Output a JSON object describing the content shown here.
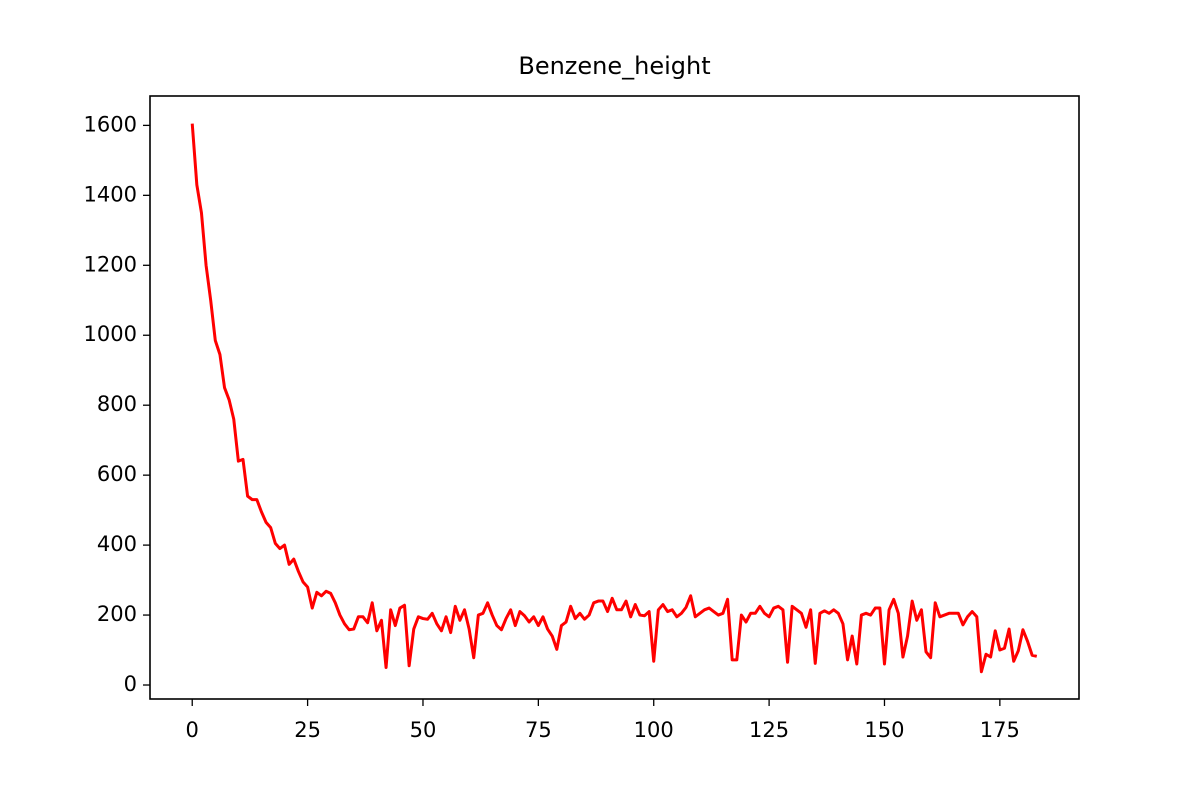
{
  "chart_data": {
    "type": "line",
    "title": "Benzene_height",
    "color": "#ff0000",
    "grid": false,
    "x": [
      0,
      1,
      2,
      3,
      4,
      5,
      6,
      7,
      8,
      9,
      10,
      11,
      12,
      13,
      14,
      15,
      16,
      17,
      18,
      19,
      20,
      21,
      22,
      23,
      24,
      25,
      26,
      27,
      28,
      29,
      30,
      31,
      32,
      33,
      34,
      35,
      36,
      37,
      38,
      39,
      40,
      41,
      42,
      43,
      44,
      45,
      46,
      47,
      48,
      49,
      50,
      51,
      52,
      53,
      54,
      55,
      56,
      57,
      58,
      59,
      60,
      61,
      62,
      63,
      64,
      65,
      66,
      67,
      68,
      69,
      70,
      71,
      72,
      73,
      74,
      75,
      76,
      77,
      78,
      79,
      80,
      81,
      82,
      83,
      84,
      85,
      86,
      87,
      88,
      89,
      90,
      91,
      92,
      93,
      94,
      95,
      96,
      97,
      98,
      99,
      100,
      101,
      102,
      103,
      104,
      105,
      106,
      107,
      108,
      109,
      110,
      111,
      112,
      113,
      114,
      115,
      116,
      117,
      118,
      119,
      120,
      121,
      122,
      123,
      124,
      125,
      126,
      127,
      128,
      129,
      130,
      131,
      132,
      133,
      134,
      135,
      136,
      137,
      138,
      139,
      140,
      141,
      142,
      143,
      144,
      145,
      146,
      147,
      148,
      149,
      150,
      151,
      152,
      153,
      154,
      155,
      156,
      157,
      158,
      159,
      160,
      161,
      162,
      163,
      164,
      165,
      166,
      167,
      168,
      169,
      170,
      171,
      172,
      173,
      174,
      175,
      176,
      177,
      178,
      179,
      180,
      181,
      182,
      183
    ],
    "values": [
      1605,
      1430,
      1350,
      1200,
      1100,
      985,
      945,
      850,
      815,
      760,
      640,
      645,
      540,
      530,
      530,
      495,
      465,
      450,
      405,
      390,
      400,
      345,
      360,
      325,
      295,
      280,
      220,
      265,
      255,
      268,
      262,
      235,
      200,
      175,
      158,
      160,
      195,
      195,
      178,
      235,
      155,
      185,
      50,
      215,
      170,
      220,
      228,
      55,
      160,
      195,
      190,
      188,
      205,
      175,
      155,
      195,
      150,
      225,
      185,
      215,
      160,
      78,
      200,
      205,
      235,
      200,
      170,
      158,
      190,
      215,
      170,
      210,
      198,
      180,
      195,
      170,
      195,
      160,
      140,
      102,
      170,
      180,
      225,
      190,
      205,
      188,
      200,
      235,
      240,
      240,
      210,
      248,
      215,
      215,
      240,
      195,
      230,
      200,
      198,
      210,
      68,
      215,
      230,
      210,
      215,
      195,
      205,
      222,
      255,
      195,
      205,
      215,
      220,
      210,
      200,
      205,
      245,
      72,
      72,
      200,
      180,
      205,
      205,
      225,
      205,
      195,
      220,
      225,
      215,
      65,
      225,
      215,
      205,
      165,
      215,
      62,
      205,
      212,
      205,
      215,
      205,
      175,
      72,
      140,
      60,
      200,
      205,
      200,
      220,
      220,
      60,
      215,
      245,
      205,
      80,
      140,
      240,
      185,
      215,
      95,
      78,
      235,
      195,
      200,
      205,
      205,
      205,
      172,
      195,
      210,
      195,
      38,
      88,
      80,
      155,
      100,
      105,
      160,
      68,
      98,
      158,
      125,
      85,
      82
    ],
    "xlim": [
      -9.15,
      192.15
    ],
    "ylim": [
      -40,
      1684
    ],
    "xticks": [
      0,
      25,
      50,
      75,
      100,
      125,
      150,
      175
    ],
    "yticks": [
      0,
      200,
      400,
      600,
      800,
      1000,
      1200,
      1400,
      1600
    ]
  }
}
